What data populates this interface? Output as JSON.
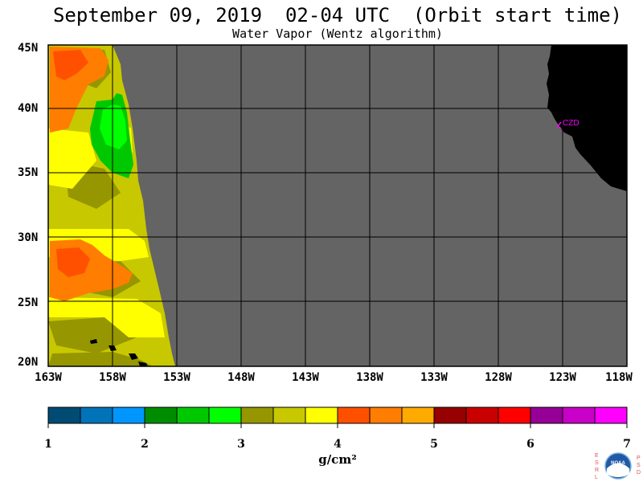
{
  "title": "September 09, 2019  02-04 UTC  (Orbit start time)",
  "subtitle": "Water Vapor (Wentz algorithm)",
  "map": {
    "lat_labels": [
      "45N",
      "40N",
      "35N",
      "30N",
      "25N",
      "20N"
    ],
    "lon_labels": [
      "163W",
      "158W",
      "153W",
      "148W",
      "143W",
      "138W",
      "133W",
      "128W",
      "123W",
      "118W"
    ],
    "station_label": "CZD",
    "colors": {
      "no_data": "#646464",
      "land": "#000000",
      "grid": "#000000",
      "station": "#ff00ff"
    }
  },
  "colorbar": {
    "colors": [
      "#004b73",
      "#0073b9",
      "#0096ff",
      "#008c00",
      "#00c800",
      "#00ff00",
      "#969600",
      "#c8c800",
      "#ffff00",
      "#ff5000",
      "#ff7d00",
      "#ffaa00",
      "#960000",
      "#c80000",
      "#ff0000",
      "#960096",
      "#c800c8",
      "#ff00ff"
    ],
    "ticks": [
      "1",
      "2",
      "3",
      "4",
      "5",
      "6",
      "7"
    ],
    "unit": "g/cm²"
  },
  "logo": {
    "left_letters": "ESRL",
    "right_letters": "PSD",
    "text": "NOAA"
  }
}
